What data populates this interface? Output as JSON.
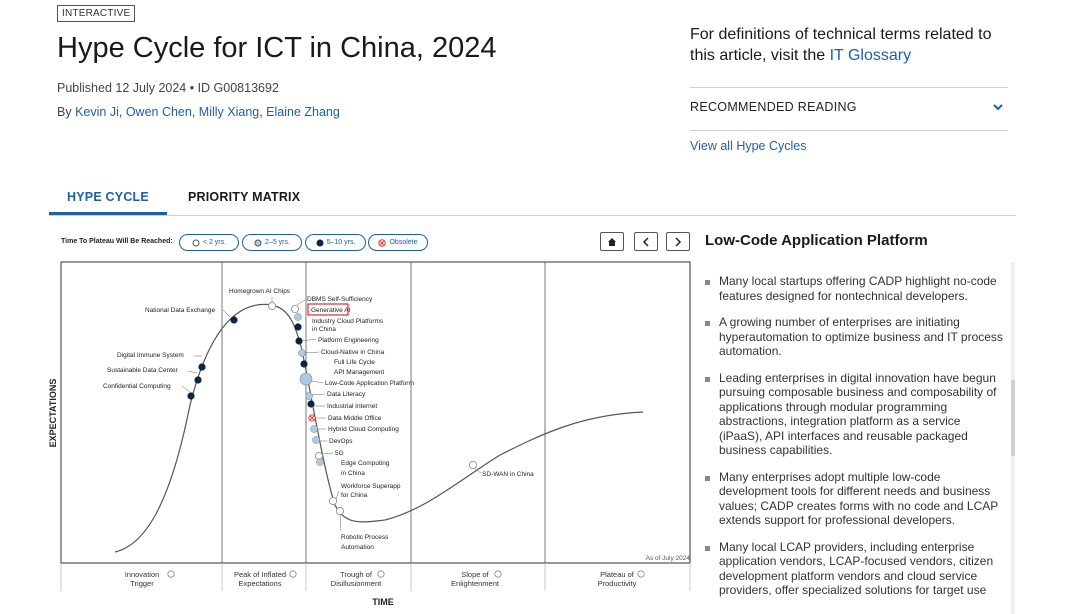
{
  "header": {
    "badge": "INTERACTIVE",
    "title": "Hype Cycle for ICT in China, 2024",
    "published": "Published 12 July 2024 • ID G00813692",
    "by": "By",
    "authors": [
      "Kevin Ji",
      "Owen Chen",
      "Milly Xiang",
      "Elaine Zhang"
    ]
  },
  "sidebar_top": {
    "glossary_text": "For definitions of technical terms related to this article, visit the",
    "glossary_link": "IT Glossary",
    "recommended": "RECOMMENDED READING",
    "view_all": "View all Hype Cycles"
  },
  "tabs": [
    {
      "label": "HYPE CYCLE",
      "active": true
    },
    {
      "label": "PRIORITY MATRIX",
      "active": false
    }
  ],
  "legend": {
    "label": "Time To Plateau Will Be Reached:",
    "items": [
      "< 2 yrs.",
      "2–5 yrs.",
      "5–10 yrs.",
      "Obsolete"
    ]
  },
  "chart": {
    "y_axis": "EXPECTATIONS",
    "x_axis": "TIME",
    "as_of": "As of July 2024",
    "phases": [
      {
        "l1": "Innovation",
        "l2": "Trigger"
      },
      {
        "l1": "Peak of Inflated",
        "l2": "Expectations"
      },
      {
        "l1": "Trough of",
        "l2": "Disillusionment"
      },
      {
        "l1": "Slope of",
        "l2": "Enlightenment"
      },
      {
        "l1": "Plateau of",
        "l2": "Productivity"
      }
    ],
    "technologies": [
      {
        "name": "Homegrown AI Chips",
        "type": "5-10"
      },
      {
        "name": "National Data Exchange",
        "type": "5-10"
      },
      {
        "name": "Digital Immune System",
        "type": "5-10"
      },
      {
        "name": "Sustainable Data Center",
        "type": "5-10"
      },
      {
        "name": "Confidential Computing",
        "type": "5-10"
      },
      {
        "name": "DBMS Self-Sufficiency",
        "type": "<2"
      },
      {
        "name": "Generative AI",
        "type": "2-5",
        "highlight": true
      },
      {
        "name": "Industry Cloud Platforms in China",
        "type": "5-10"
      },
      {
        "name": "Platform Engineering",
        "type": "5-10"
      },
      {
        "name": "Cloud-Native in China",
        "type": "2-5"
      },
      {
        "name": "Full Life Cycle API Management",
        "type": "5-10"
      },
      {
        "name": "Low-Code Application Platform",
        "type": "2-5",
        "selected": true
      },
      {
        "name": "Data Literacy",
        "type": "2-5"
      },
      {
        "name": "Industrial Internet",
        "type": "5-10"
      },
      {
        "name": "Data Middle Office",
        "type": "obsolete"
      },
      {
        "name": "Hybrid Cloud Computing",
        "type": "2-5"
      },
      {
        "name": "DevOps",
        "type": "2-5"
      },
      {
        "name": "5G",
        "type": "<2"
      },
      {
        "name": "Edge Computing in China",
        "type": "2-5"
      },
      {
        "name": "Workforce Superapp for China",
        "type": "<2"
      },
      {
        "name": "Robotic Process Automation",
        "type": "<2"
      },
      {
        "name": "SD-WAN in China",
        "type": "<2"
      }
    ]
  },
  "side_panel": {
    "title": "Low-Code Application Platform",
    "bullets": [
      "Many local startups offering CADP highlight no-code features designed for nontechnical developers.",
      "A growing number of enterprises are initiating hyperautomation to optimize business and IT process automation.",
      "Leading enterprises in digital innovation have begun pursuing composable business and composability of applications through modular programming abstractions, integration platform as a service (iPaaS), API interfaces and reusable packaged business capabilities.",
      "Many enterprises adopt multiple low-code development tools for different needs and business values; CADP creates forms with no code and LCAP extends support for professional developers.",
      "Many local LCAP providers, including enterprise application vendors, LCAP-focused vendors, citizen development platform vendors and cloud service providers, offer specialized solutions for target use"
    ]
  }
}
